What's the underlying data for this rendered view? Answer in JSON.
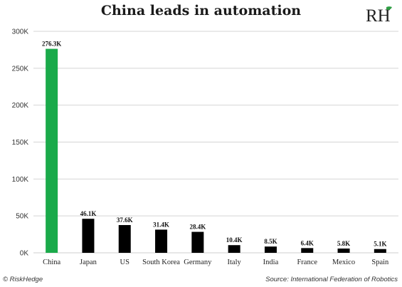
{
  "colors": {
    "highlight": "#1aaa4a",
    "bar": "#000000"
  },
  "logo": {
    "text": "RH",
    "icon": "leaf-icon"
  },
  "footer": {
    "left": "© RiskHedge",
    "right": "Source: International Federation of Robotics"
  },
  "chart_data": {
    "type": "bar",
    "title": "China leads in automation",
    "xlabel": "",
    "ylabel": "",
    "categories": [
      "China",
      "Japan",
      "US",
      "South Korea",
      "Germany",
      "Italy",
      "India",
      "France",
      "Mexico",
      "Spain"
    ],
    "values": [
      276.3,
      46.1,
      37.6,
      31.4,
      28.4,
      10.4,
      8.5,
      6.4,
      5.8,
      5.1
    ],
    "value_labels": [
      "276.3K",
      "46.1K",
      "37.6K",
      "31.4K",
      "28.4K",
      "10.4K",
      "8.5K",
      "6.4K",
      "5.8K",
      "5.1K"
    ],
    "ylim": [
      0,
      300
    ],
    "yticks": [
      0,
      50,
      100,
      150,
      200,
      250,
      300
    ],
    "ytick_labels": [
      "0K",
      "50K",
      "100K",
      "150K",
      "200K",
      "250K",
      "300K"
    ],
    "grid": true,
    "legend": "none",
    "highlight_category": "China"
  }
}
